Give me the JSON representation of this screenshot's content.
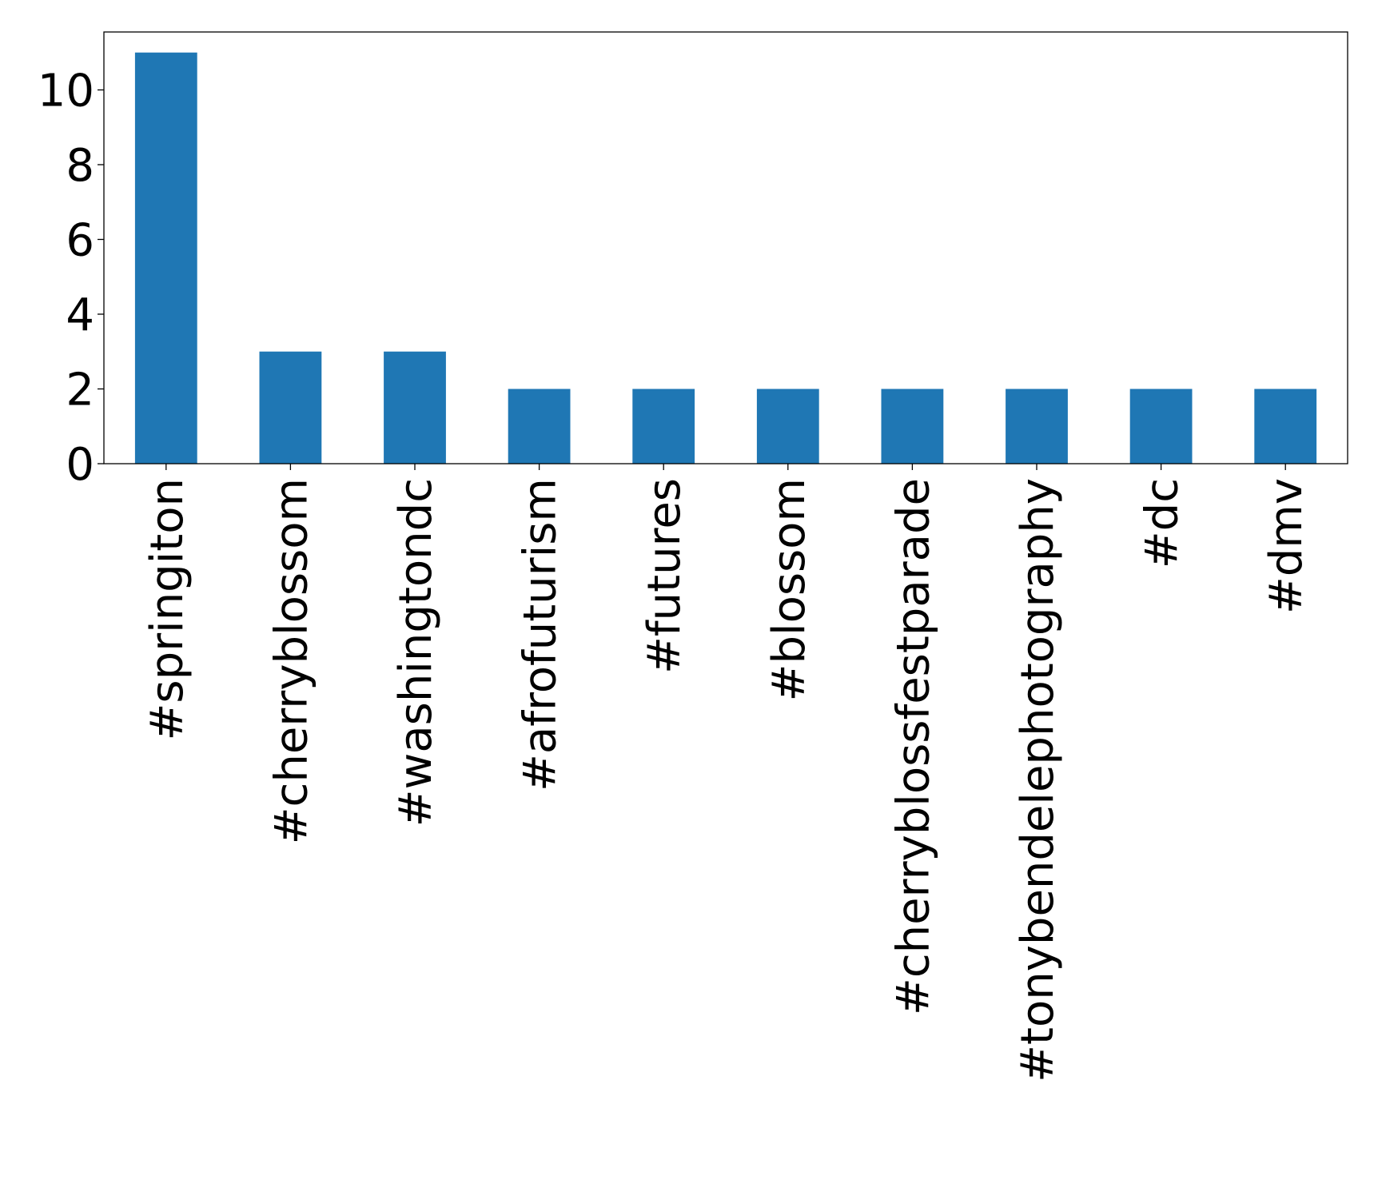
{
  "chart_data": {
    "type": "bar",
    "title": "",
    "xlabel": "",
    "ylabel": "",
    "categories": [
      "#springiton",
      "#cherryblossom",
      "#washingtondc",
      "#afrofuturism",
      "#futures",
      "#blossom",
      "#cherryblossfestparade",
      "#tonybendelephotography",
      "#dc",
      "#dmv"
    ],
    "values": [
      11,
      3,
      3,
      2,
      2,
      2,
      2,
      2,
      2,
      2
    ],
    "ylim": [
      0,
      11.55
    ],
    "yticks": [
      0,
      2,
      4,
      6,
      8,
      10
    ],
    "grid": false,
    "legend": "none",
    "bar_color": "#1f77b4"
  }
}
